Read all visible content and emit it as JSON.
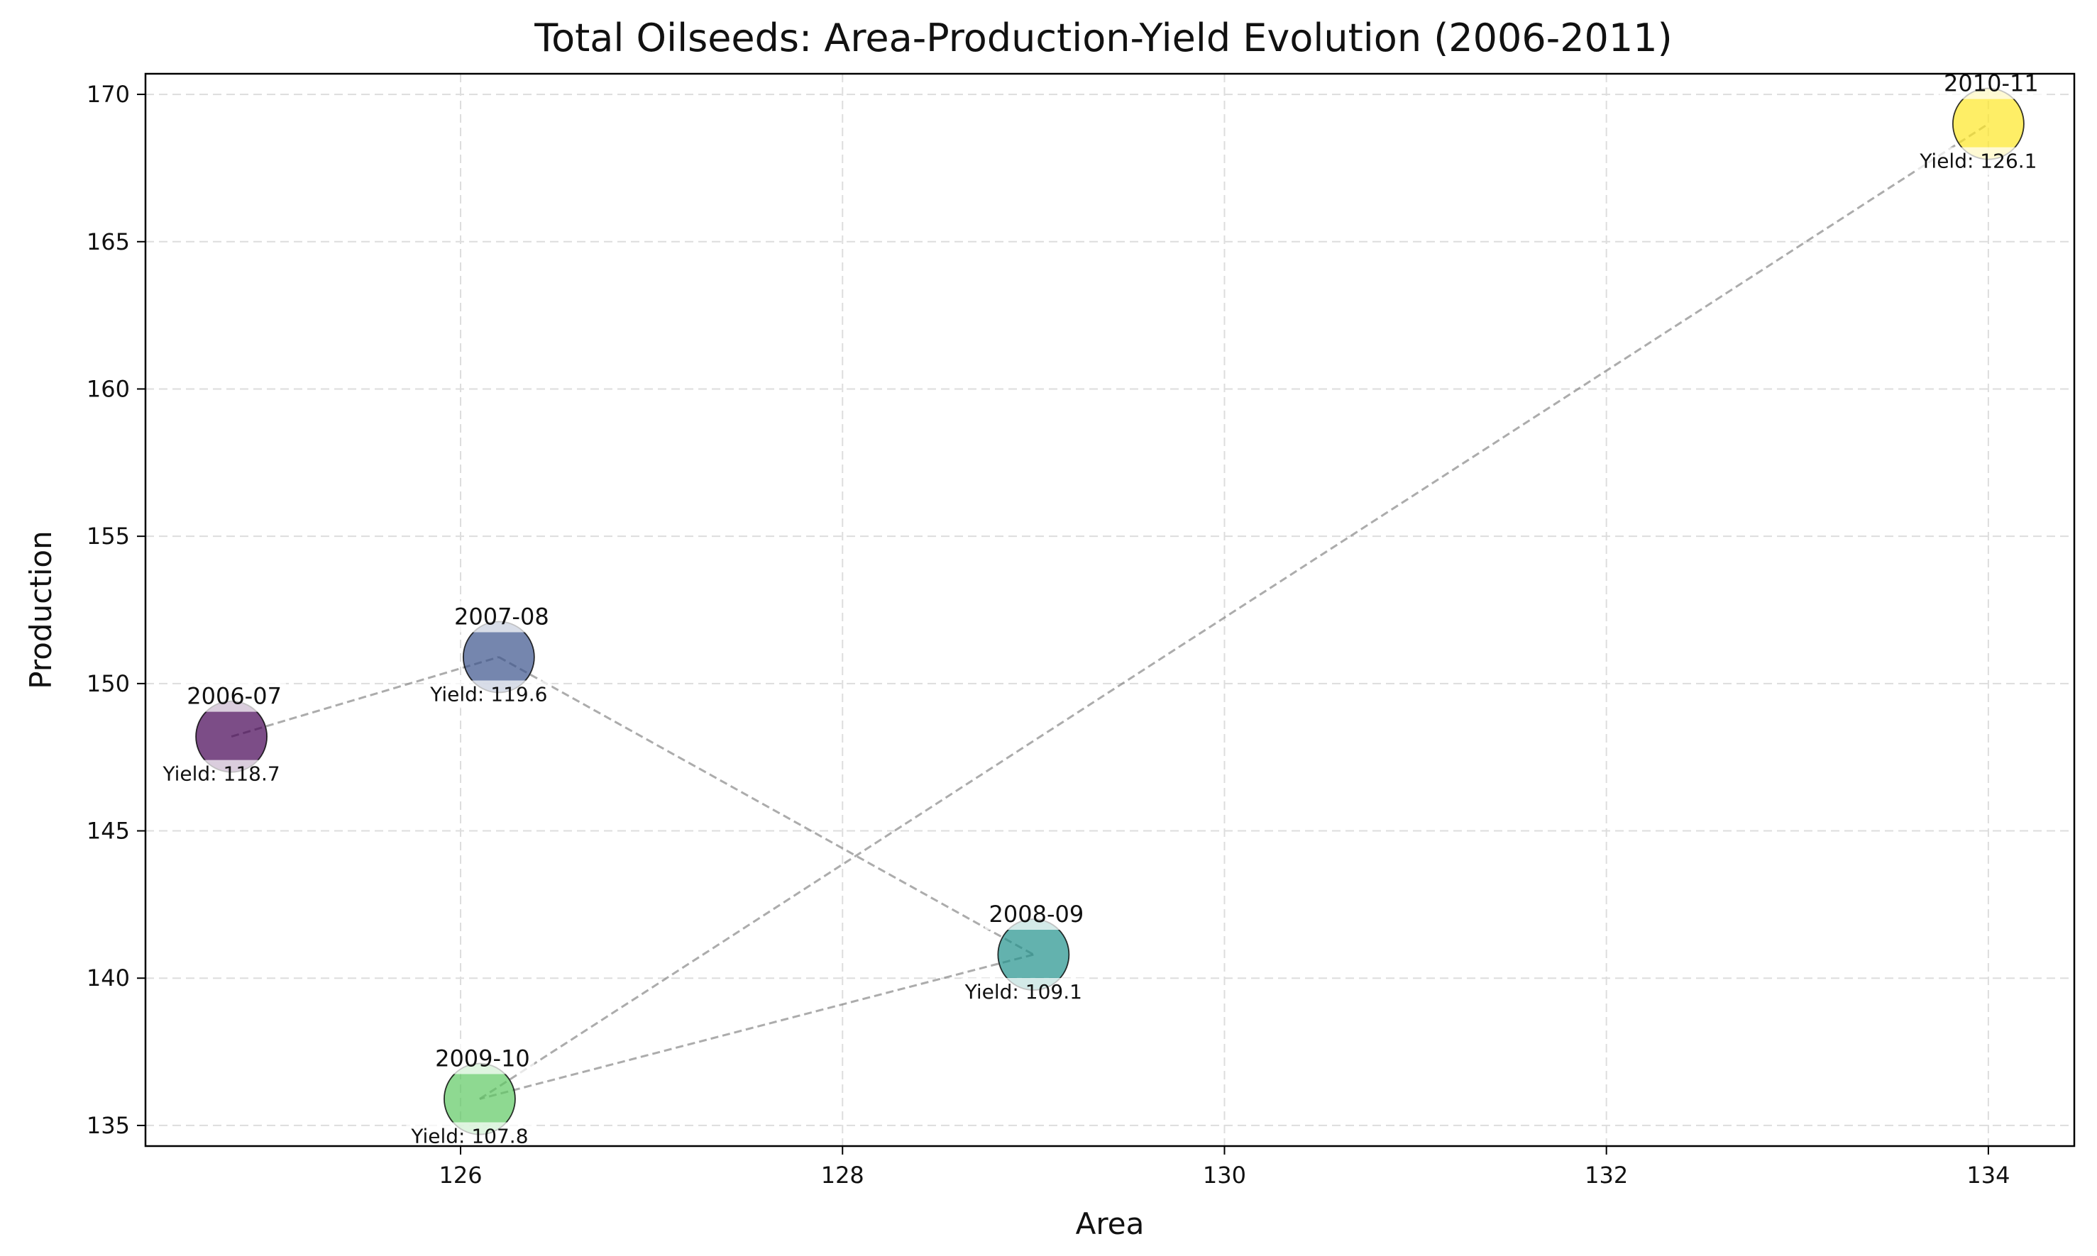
{
  "chart_data": {
    "type": "scatter",
    "title": "Total Oilseeds: Area-Production-Yield Evolution (2006-2011)",
    "xlabel": "Area",
    "ylabel": "Production",
    "xlim": [
      124.35,
      134.45
    ],
    "ylim": [
      134.3,
      170.7
    ],
    "xticks": [
      126,
      128,
      130,
      132,
      134
    ],
    "yticks": [
      135,
      140,
      145,
      150,
      155,
      160,
      165,
      170
    ],
    "grid": true,
    "points": [
      {
        "year": "2006-07",
        "x": 124.8,
        "y": 148.2,
        "yield": 118.7,
        "yield_label": "Yield: 118.7",
        "color": "#440154"
      },
      {
        "year": "2007-08",
        "x": 126.2,
        "y": 150.9,
        "yield": 119.6,
        "yield_label": "Yield: 119.6",
        "color": "#3b528b"
      },
      {
        "year": "2008-09",
        "x": 129.0,
        "y": 140.8,
        "yield": 109.1,
        "yield_label": "Yield: 109.1",
        "color": "#21918c"
      },
      {
        "year": "2009-10",
        "x": 126.1,
        "y": 135.9,
        "yield": 107.8,
        "yield_label": "Yield: 107.8",
        "color": "#5ec962"
      },
      {
        "year": "2010-11",
        "x": 134.0,
        "y": 169.0,
        "yield": 126.1,
        "yield_label": "Yield: 126.1",
        "color": "#fde725"
      }
    ]
  }
}
